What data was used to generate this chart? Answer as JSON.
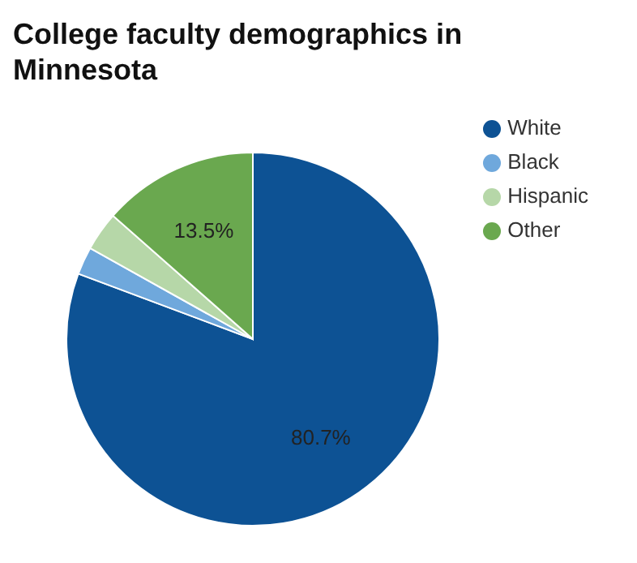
{
  "chart_data": {
    "type": "pie",
    "title": "College faculty demographics in Minnesota",
    "categories": [
      "White",
      "Black",
      "Hispanic",
      "Other"
    ],
    "values": [
      80.7,
      2.4,
      3.4,
      13.5
    ],
    "colors": [
      "#0d5294",
      "#6fa8dc",
      "#b6d7a8",
      "#6aa84f"
    ],
    "value_labels": [
      "80.7%",
      null,
      null,
      "13.5%"
    ],
    "legend": "top right"
  }
}
